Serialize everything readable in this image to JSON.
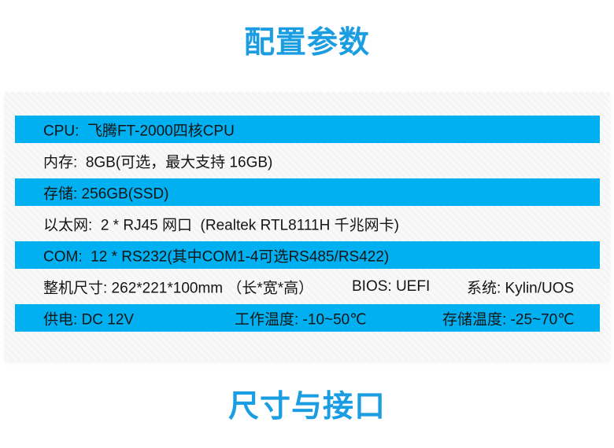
{
  "titles": {
    "section1": "配置参数",
    "section2": "尺寸与接口"
  },
  "colors": {
    "title_blue": "#1b9de2",
    "row_blue": "#00b0f0"
  },
  "spec_table": {
    "rows": [
      {
        "highlighted": true,
        "cells": [
          "CPU:  飞腾FT-2000四核CPU"
        ]
      },
      {
        "highlighted": false,
        "cells": [
          "内存:  8GB(可选，最大支持 16GB)"
        ]
      },
      {
        "highlighted": true,
        "cells": [
          "存储: 256GB(SSD)"
        ]
      },
      {
        "highlighted": false,
        "cells": [
          "以太网:  2 * RJ45 网口  (Realtek RTL8111H 千兆网卡)"
        ]
      },
      {
        "highlighted": true,
        "cells": [
          "COM:  12 * RS232(其中COM1-4可选RS485/RS422)"
        ]
      },
      {
        "highlighted": false,
        "cells": [
          "整机尺寸: 262*221*100mm （长*宽*高）",
          "BIOS: UEFI",
          "系统: Kylin/UOS"
        ]
      },
      {
        "highlighted": true,
        "cells": [
          "供电: DC 12V",
          "工作温度: -10~50℃",
          "存储温度: -25~70℃"
        ]
      }
    ]
  }
}
